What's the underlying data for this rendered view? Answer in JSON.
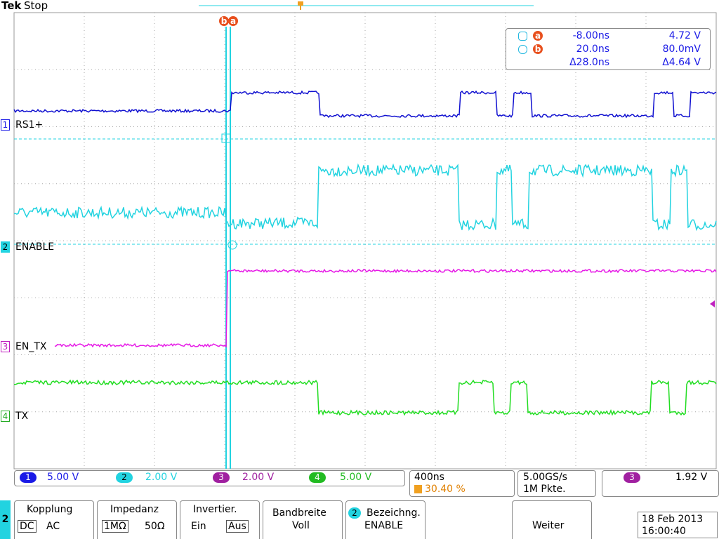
{
  "header": {
    "brand": "Tek",
    "status": "Stop"
  },
  "cursors": {
    "marker_b": "b",
    "marker_a": "a",
    "readout": [
      {
        "marker": "a",
        "time": "-8.00ns",
        "value": "4.72 V"
      },
      {
        "marker": "b",
        "time": "20.0ns",
        "value": "80.0mV"
      }
    ],
    "delta": {
      "time": "Δ28.0ns",
      "value": "Δ4.64 V"
    }
  },
  "channels": [
    {
      "number": "1",
      "label": "RS1+"
    },
    {
      "number": "2",
      "label": "ENABLE"
    },
    {
      "number": "3",
      "label": "EN_TX"
    },
    {
      "number": "4",
      "label": "TX"
    }
  ],
  "status_bar": {
    "channels": [
      {
        "number": "1",
        "scale": "5.00 V"
      },
      {
        "number": "2",
        "scale": "2.00 V"
      },
      {
        "number": "3",
        "scale": "2.00 V"
      },
      {
        "number": "4",
        "scale": "5.00 V"
      }
    ],
    "timebase": "400ns",
    "trigger_position": "30.40 %",
    "sample_rate": "5.00GS/s",
    "record_length": "1M Pkte.",
    "trigger_channel": "3",
    "trigger_level": "1.92 V"
  },
  "menu": {
    "channel": "2",
    "kopplung": {
      "title": "Kopplung",
      "options": [
        "DC",
        "AC"
      ]
    },
    "impedanz": {
      "title": "Impedanz",
      "options": [
        "1MΩ",
        "50Ω"
      ]
    },
    "invertier": {
      "title": "Invertier.",
      "options": [
        "Ein",
        "Aus"
      ]
    },
    "bandbreite": {
      "title": "Bandbreite",
      "value": "Voll"
    },
    "bezeichnung": {
      "channel": "2",
      "title": "Bezeichng.",
      "value": "ENABLE"
    },
    "weiter": "Weiter"
  },
  "datetime": {
    "date": "18 Feb 2013",
    "time": "16:00:40"
  }
}
